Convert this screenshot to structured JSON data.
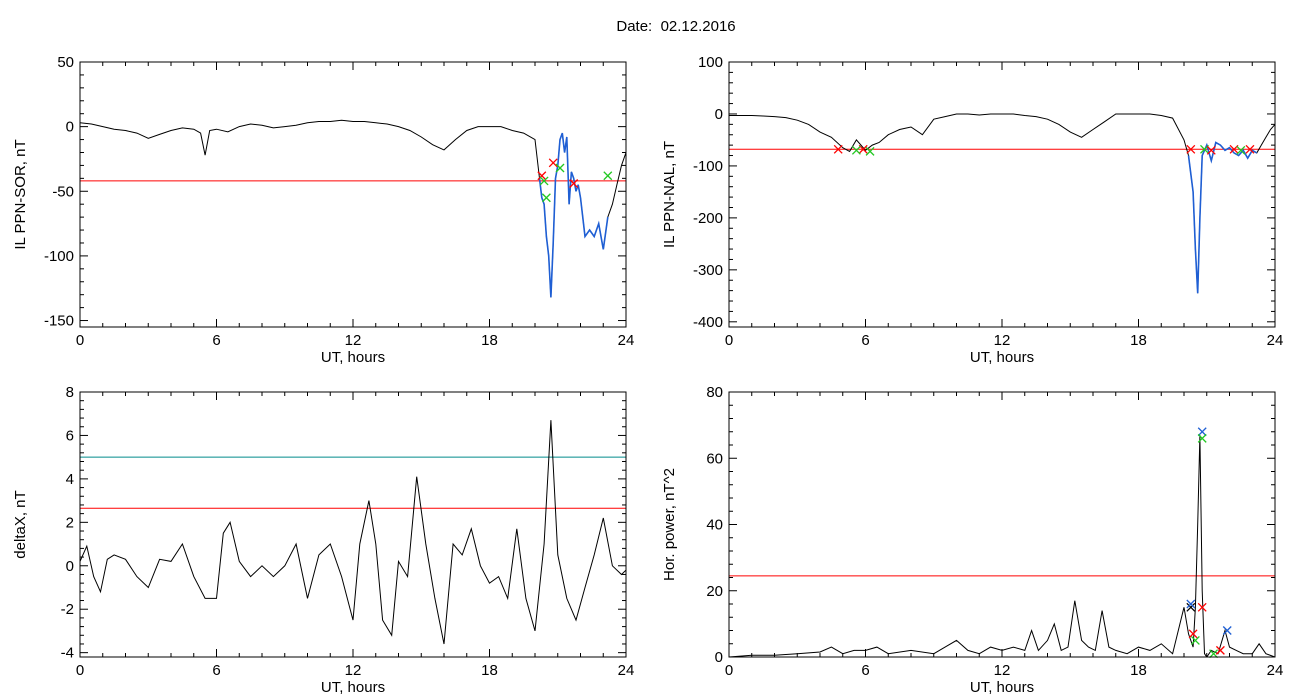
{
  "header": {
    "date_label": "Date:",
    "date_value": "02.12.2016"
  },
  "colors": {
    "curve": "#000000",
    "threshold": "#ff0000",
    "threshold2": "#008b8b",
    "highlight": "#1f5fd4",
    "marker_red": "#ff0000",
    "marker_green": "#22c822",
    "marker_blue": "#1f5fd4",
    "marker_black": "#000000"
  },
  "chart_data": [
    {
      "id": "il-sor",
      "type": "line",
      "ylabel": "IL PPN-SOR, nT",
      "xlabel": "UT, hours",
      "xlim": [
        0,
        24
      ],
      "ylim": [
        -155,
        50
      ],
      "xticks": [
        0,
        6,
        12,
        18,
        24
      ],
      "yticks": [
        -150,
        -100,
        -50,
        0,
        50
      ],
      "thresholds": [
        {
          "value": -42,
          "color": "#ff0000"
        }
      ],
      "x": [
        0,
        0.5,
        1,
        1.5,
        2,
        2.5,
        3,
        3.5,
        4,
        4.5,
        5,
        5.3,
        5.5,
        5.7,
        6,
        6.5,
        7,
        7.5,
        8,
        8.5,
        9,
        9.5,
        10,
        10.5,
        11,
        11.5,
        12,
        12.5,
        13,
        13.5,
        14,
        14.5,
        15,
        15.5,
        16,
        16.5,
        17,
        17.5,
        18,
        18.5,
        19,
        19.5,
        20,
        20.2,
        20.3,
        20.4,
        20.5,
        20.6,
        20.7,
        20.8,
        20.9,
        21,
        21.1,
        21.2,
        21.3,
        21.4,
        21.5,
        21.6,
        21.7,
        21.8,
        21.9,
        22,
        22.2,
        22.4,
        22.6,
        22.8,
        23,
        23.2,
        23.4,
        23.6,
        23.8,
        24
      ],
      "values": [
        3,
        2,
        0,
        -2,
        -3,
        -5,
        -9,
        -6,
        -3,
        -1,
        -2,
        -5,
        -22,
        -3,
        -2,
        -4,
        0,
        2,
        1,
        -1,
        0,
        1,
        3,
        4,
        4,
        5,
        4,
        4,
        3,
        2,
        0,
        -3,
        -8,
        -14,
        -18,
        -10,
        -3,
        0,
        0,
        0,
        -3,
        -5,
        -10,
        -40,
        -55,
        -60,
        -85,
        -100,
        -132,
        -90,
        -40,
        -30,
        -10,
        -5,
        -20,
        -8,
        -60,
        -35,
        -40,
        -50,
        -45,
        -55,
        -85,
        -80,
        -85,
        -75,
        -95,
        -70,
        -60,
        -45,
        -30,
        -20
      ],
      "highlight_range": [
        20.2,
        23.3
      ],
      "markers": [
        {
          "x": 20.3,
          "y": -38,
          "color": "#ff0000"
        },
        {
          "x": 20.4,
          "y": -42,
          "color": "#22c822"
        },
        {
          "x": 20.5,
          "y": -55,
          "color": "#22c822"
        },
        {
          "x": 20.8,
          "y": -28,
          "color": "#ff0000"
        },
        {
          "x": 21.1,
          "y": -32,
          "color": "#22c822"
        },
        {
          "x": 21.7,
          "y": -44,
          "color": "#ff0000"
        },
        {
          "x": 23.2,
          "y": -38,
          "color": "#22c822"
        }
      ]
    },
    {
      "id": "il-nal",
      "type": "line",
      "ylabel": "IL PPN-NAL, nT",
      "xlabel": "UT, hours",
      "xlim": [
        0,
        24
      ],
      "ylim": [
        -410,
        100
      ],
      "xticks": [
        0,
        6,
        12,
        18,
        24
      ],
      "yticks": [
        -400,
        -300,
        -200,
        -100,
        0,
        100
      ],
      "thresholds": [
        {
          "value": -68,
          "color": "#ff0000"
        }
      ],
      "x": [
        0,
        0.5,
        1,
        1.5,
        2,
        2.5,
        3,
        3.5,
        4,
        4.5,
        5,
        5.3,
        5.6,
        6,
        6.3,
        6.6,
        7,
        7.5,
        8,
        8.5,
        9,
        9.5,
        10,
        10.5,
        11,
        11.5,
        12,
        12.5,
        13,
        13.5,
        14,
        14.5,
        15,
        15.5,
        16,
        16.5,
        17,
        17.5,
        18,
        18.5,
        19,
        19.5,
        20,
        20.2,
        20.4,
        20.5,
        20.6,
        20.7,
        20.8,
        21,
        21.2,
        21.4,
        21.6,
        21.8,
        22,
        22.2,
        22.4,
        22.6,
        22.8,
        23,
        23.2,
        23.4,
        23.6,
        23.8,
        24
      ],
      "values": [
        -3,
        -3,
        -3,
        -4,
        -5,
        -7,
        -12,
        -20,
        -35,
        -45,
        -65,
        -72,
        -50,
        -70,
        -60,
        -55,
        -40,
        -30,
        -25,
        -40,
        -10,
        -5,
        0,
        0,
        -2,
        0,
        0,
        0,
        -3,
        -5,
        -10,
        -20,
        -35,
        -45,
        -30,
        -15,
        0,
        0,
        0,
        0,
        -3,
        -8,
        -50,
        -80,
        -150,
        -260,
        -345,
        -200,
        -80,
        -60,
        -90,
        -55,
        -60,
        -70,
        -65,
        -75,
        -80,
        -70,
        -85,
        -70,
        -75,
        -60,
        -45,
        -30,
        -20
      ],
      "highlight_range": [
        20.2,
        23.2
      ],
      "markers": [
        {
          "x": 4.8,
          "y": -68,
          "color": "#ff0000"
        },
        {
          "x": 5.9,
          "y": -68,
          "color": "#ff0000"
        },
        {
          "x": 5.6,
          "y": -70,
          "color": "#22c822"
        },
        {
          "x": 6.2,
          "y": -72,
          "color": "#22c822"
        },
        {
          "x": 20.3,
          "y": -68,
          "color": "#ff0000"
        },
        {
          "x": 20.9,
          "y": -68,
          "color": "#22c822"
        },
        {
          "x": 21.2,
          "y": -70,
          "color": "#ff0000"
        },
        {
          "x": 22.2,
          "y": -68,
          "color": "#ff0000"
        },
        {
          "x": 22.5,
          "y": -70,
          "color": "#22c822"
        },
        {
          "x": 22.9,
          "y": -68,
          "color": "#ff0000"
        }
      ]
    },
    {
      "id": "deltax",
      "type": "line",
      "ylabel": "deltaX, nT",
      "xlabel": "UT, hours",
      "xlim": [
        0,
        24
      ],
      "ylim": [
        -4.2,
        8
      ],
      "xticks": [
        0,
        6,
        12,
        18,
        24
      ],
      "yticks": [
        -4,
        -2,
        0,
        2,
        4,
        6,
        8
      ],
      "thresholds": [
        {
          "value": 5.0,
          "color": "#008b8b"
        },
        {
          "value": 2.65,
          "color": "#ff0000"
        }
      ],
      "x": [
        0,
        0.3,
        0.6,
        0.9,
        1.2,
        1.5,
        2,
        2.5,
        3,
        3.5,
        4,
        4.5,
        5,
        5.5,
        6,
        6.3,
        6.6,
        7,
        7.5,
        8,
        8.5,
        9,
        9.5,
        10,
        10.5,
        11,
        11.5,
        12,
        12.3,
        12.7,
        13,
        13.3,
        13.7,
        14,
        14.4,
        14.8,
        15.2,
        15.6,
        16,
        16.4,
        16.8,
        17.2,
        17.6,
        18,
        18.4,
        18.8,
        19.2,
        19.6,
        20,
        20.4,
        20.7,
        21,
        21.4,
        21.8,
        22.2,
        22.6,
        23,
        23.4,
        23.8,
        24
      ],
      "values": [
        0.2,
        0.9,
        -0.5,
        -1.2,
        0.3,
        0.5,
        0.3,
        -0.5,
        -1.0,
        0.3,
        0.2,
        1.0,
        -0.5,
        -1.5,
        -1.5,
        1.5,
        2.0,
        0.2,
        -0.5,
        0.0,
        -0.5,
        0.0,
        1.0,
        -1.5,
        0.5,
        1.0,
        -0.5,
        -2.5,
        1.0,
        3.0,
        1.0,
        -2.5,
        -3.2,
        0.2,
        -0.5,
        4.1,
        1.0,
        -1.5,
        -3.6,
        1.0,
        0.5,
        1.7,
        0.0,
        -0.8,
        -0.5,
        -1.5,
        1.7,
        -1.5,
        -3.0,
        1.0,
        6.7,
        0.5,
        -1.5,
        -2.5,
        -1.0,
        0.5,
        2.2,
        0.0,
        -0.4,
        -0.2
      ]
    },
    {
      "id": "hor-power",
      "type": "line",
      "ylabel": "Hor. power, nT^2",
      "xlabel": "UT, hours",
      "xlim": [
        0,
        24
      ],
      "ylim": [
        0,
        80
      ],
      "xticks": [
        0,
        6,
        12,
        18,
        24
      ],
      "yticks": [
        0,
        20,
        40,
        60,
        80
      ],
      "thresholds": [
        {
          "value": 24.5,
          "color": "#ff0000"
        }
      ],
      "x": [
        0,
        1,
        2,
        3,
        4,
        4.5,
        5,
        5.5,
        6,
        6.5,
        7,
        8,
        9,
        9.5,
        10,
        10.5,
        11,
        11.5,
        12,
        12.5,
        13,
        13.3,
        13.6,
        14,
        14.3,
        14.6,
        14.9,
        15.2,
        15.5,
        15.8,
        16.1,
        16.4,
        16.7,
        17,
        17.5,
        18,
        18.5,
        19,
        19.5,
        20,
        20.2,
        20.4,
        20.5,
        20.6,
        20.7,
        20.8,
        20.9,
        21,
        21.2,
        21.5,
        21.8,
        22,
        22.3,
        22.6,
        23,
        23.3,
        23.6,
        24
      ],
      "values": [
        0,
        0.5,
        0.5,
        1,
        1.5,
        3,
        1,
        2,
        2,
        3,
        1,
        2,
        1,
        3,
        5,
        2,
        1,
        3,
        2,
        3,
        2,
        8,
        2,
        5,
        10,
        2,
        3,
        17,
        5,
        3,
        2,
        14,
        3,
        2,
        1,
        3,
        2,
        4,
        1,
        15,
        7,
        3,
        15,
        40,
        67,
        20,
        1,
        0,
        2,
        1,
        8,
        3,
        2,
        1,
        1,
        4,
        1,
        0
      ],
      "markers": [
        {
          "x": 20.3,
          "y": 15,
          "color": "#000000"
        },
        {
          "x": 20.3,
          "y": 16,
          "color": "#1f5fd4"
        },
        {
          "x": 20.4,
          "y": 7,
          "color": "#ff0000"
        },
        {
          "x": 20.5,
          "y": 5,
          "color": "#22c822"
        },
        {
          "x": 20.8,
          "y": 15,
          "color": "#ff0000"
        },
        {
          "x": 20.8,
          "y": 68,
          "color": "#1f5fd4"
        },
        {
          "x": 20.8,
          "y": 66,
          "color": "#22c822"
        },
        {
          "x": 21.3,
          "y": 1,
          "color": "#22c822"
        },
        {
          "x": 21.6,
          "y": 2,
          "color": "#ff0000"
        },
        {
          "x": 21.9,
          "y": 8,
          "color": "#1f5fd4"
        }
      ]
    }
  ]
}
